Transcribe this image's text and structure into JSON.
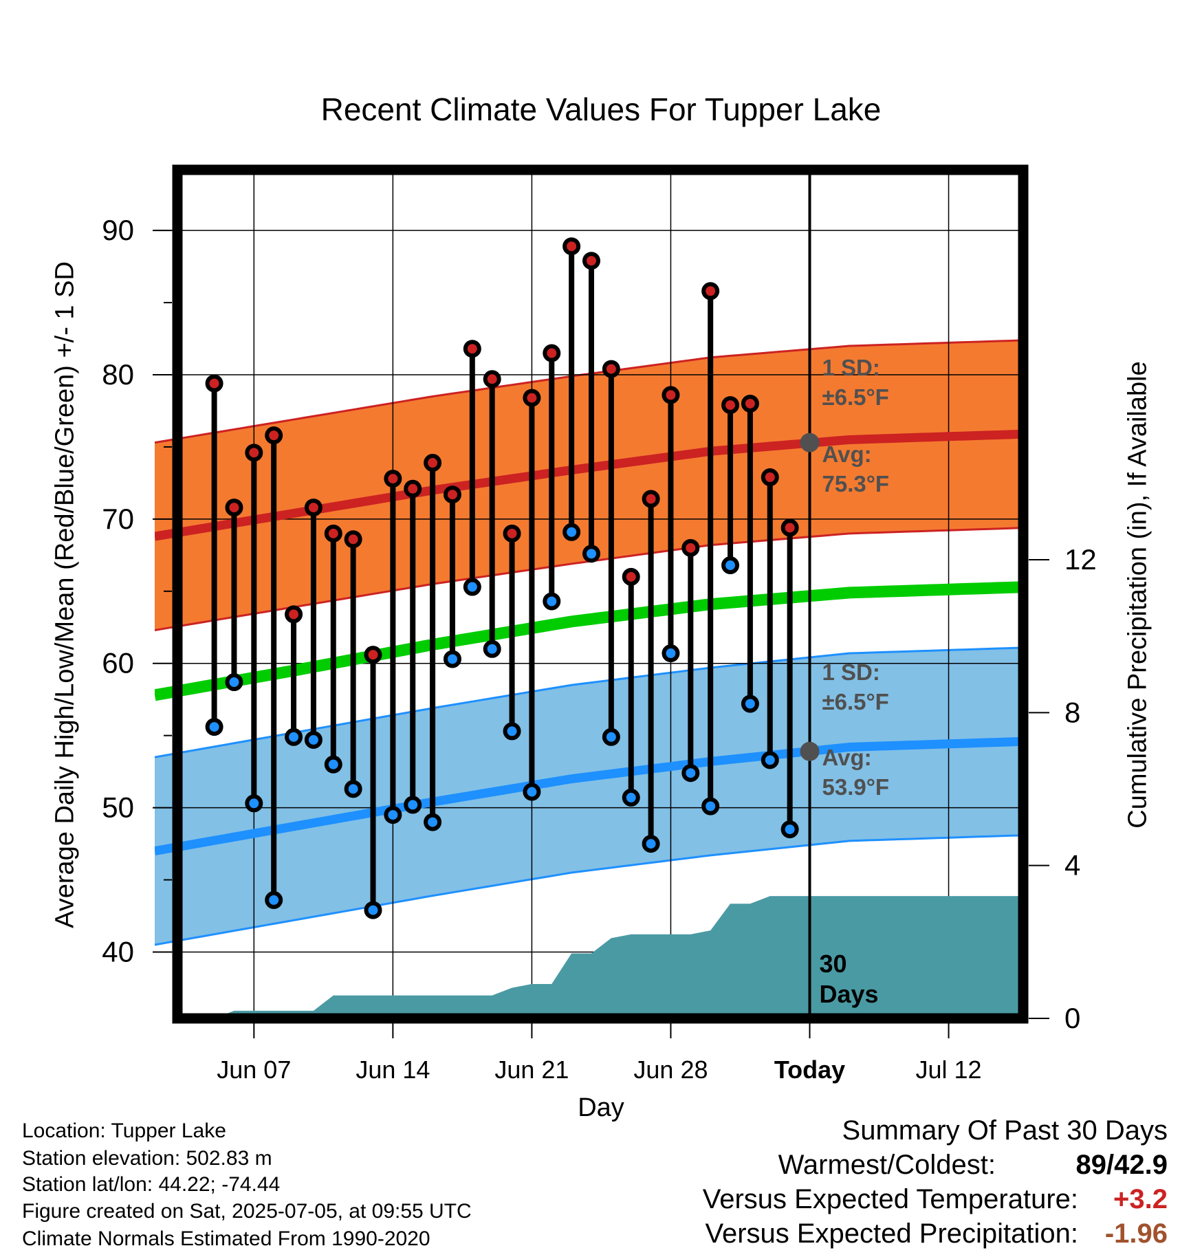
{
  "title": "Recent Climate Values For Tupper Lake",
  "xlabel": "Day",
  "ylabel_left": "Average Daily High/Low/Mean (Red/Blue/Green) +/- 1 SD",
  "ylabel_right": "Cumulative Precipitation (in), If Available",
  "footer": {
    "location": "Location: Tupper Lake",
    "elevation": "Station elevation: 502.83 m",
    "latlon": "Station lat/lon: 44.22; -74.44",
    "created": "Figure created on Sat, 2025-07-05, at 09:55 UTC",
    "normals": "Climate Normals Estimated From 1990-2020"
  },
  "summary": {
    "heading": "Summary Of Past 30 Days",
    "warm_cold_label": "Warmest/Coldest:",
    "warm_cold_value": "89/42.9",
    "temp_label": "Versus Expected Temperature:",
    "temp_value": "+3.2",
    "precip_label": "Versus Expected Precipitation:",
    "precip_value": "-1.96"
  },
  "colors": {
    "high": "#cc2222",
    "low": "#1e90ff",
    "mean": "#00cc00",
    "high_band": "#f47a30",
    "low_band": "#82c0e6",
    "precip": "#4a9aa4",
    "annotation": "#505050",
    "temp_anomaly": "#cc2222",
    "precip_anomaly": "#a0522d"
  },
  "chart_data": {
    "type": "line",
    "x_axis": {
      "range_days": [
        -33,
        11
      ],
      "today_offset": 0,
      "ticks": [
        {
          "offset": -28,
          "label": "Jun 07"
        },
        {
          "offset": -21,
          "label": "Jun 14"
        },
        {
          "offset": -14,
          "label": "Jun 21"
        },
        {
          "offset": -7,
          "label": "Jun 28"
        },
        {
          "offset": 0,
          "label": "Today"
        },
        {
          "offset": 7,
          "label": "Jul 12"
        }
      ]
    },
    "y_left": {
      "range": [
        35.4,
        94.2
      ],
      "ticks": [
        40,
        50,
        60,
        70,
        80,
        90
      ],
      "minor_step": 5
    },
    "y_right": {
      "range": [
        0,
        22.2
      ],
      "ticks": [
        0,
        4,
        8,
        12
      ]
    },
    "days_offset": [
      -30,
      -29,
      -28,
      -27,
      -26,
      -25,
      -24,
      -23,
      -22,
      -21,
      -20,
      -19,
      -18,
      -17,
      -16,
      -15,
      -14,
      -13,
      -12,
      -11,
      -10,
      -9,
      -8,
      -7,
      -6,
      -5,
      -4,
      -3,
      -2,
      -1
    ],
    "daily_high": [
      79.4,
      70.8,
      74.6,
      75.8,
      63.4,
      70.8,
      69.0,
      68.6,
      60.6,
      72.8,
      72.1,
      73.9,
      71.7,
      81.8,
      79.7,
      69.0,
      78.4,
      81.5,
      88.9,
      87.9,
      80.4,
      66.0,
      71.4,
      78.6,
      68.0,
      85.8,
      77.9,
      78.0,
      72.9,
      69.4
    ],
    "daily_low": [
      55.6,
      58.7,
      50.3,
      43.6,
      54.9,
      54.7,
      53.0,
      51.3,
      42.9,
      49.5,
      50.2,
      49.0,
      60.3,
      65.3,
      61.0,
      55.3,
      51.1,
      64.3,
      69.1,
      67.6,
      54.9,
      50.7,
      47.5,
      60.7,
      52.4,
      50.1,
      66.8,
      57.2,
      53.3,
      48.5
    ],
    "normal_high_avg": {
      "offsets": [
        -33,
        -26,
        -19,
        -12,
        -5,
        2,
        11
      ],
      "values": [
        68.8,
        70.4,
        72.0,
        73.4,
        74.7,
        75.5,
        75.9
      ]
    },
    "normal_mean_avg": {
      "offsets": [
        -33,
        -26,
        -19,
        -12,
        -5,
        2,
        11
      ],
      "values": [
        57.8,
        59.5,
        61.3,
        62.9,
        64.1,
        64.9,
        65.3
      ]
    },
    "normal_low_avg": {
      "offsets": [
        -33,
        -26,
        -19,
        -12,
        -5,
        2,
        11
      ],
      "values": [
        47.0,
        48.7,
        50.4,
        52.0,
        53.2,
        54.2,
        54.6
      ]
    },
    "high_sd": 6.5,
    "low_sd": 6.5,
    "cumulative_precip": {
      "offsets": [
        -33,
        -30,
        -29,
        -25,
        -24,
        -20,
        -16,
        -15,
        -14,
        -13,
        -12,
        -11,
        -10,
        -9,
        -6,
        -5,
        -4,
        -3,
        -2,
        11
      ],
      "values": [
        0.0,
        0.0,
        0.2,
        0.2,
        0.6,
        0.6,
        0.6,
        0.8,
        0.9,
        0.9,
        1.7,
        1.7,
        2.1,
        2.2,
        2.2,
        2.3,
        3.0,
        3.0,
        3.2,
        3.2
      ]
    },
    "annotations": {
      "high_sd_label": "1 SD:",
      "high_sd_value": "±6.5°F",
      "high_avg_label": "Avg:",
      "high_avg_value": "75.3°F",
      "high_avg_point": 75.3,
      "low_sd_label": "1 SD:",
      "low_sd_value": "±6.5°F",
      "low_avg_label": "Avg:",
      "low_avg_value": "53.9°F",
      "low_avg_point": 53.9,
      "window_label_1": "30",
      "window_label_2": "Days"
    }
  }
}
